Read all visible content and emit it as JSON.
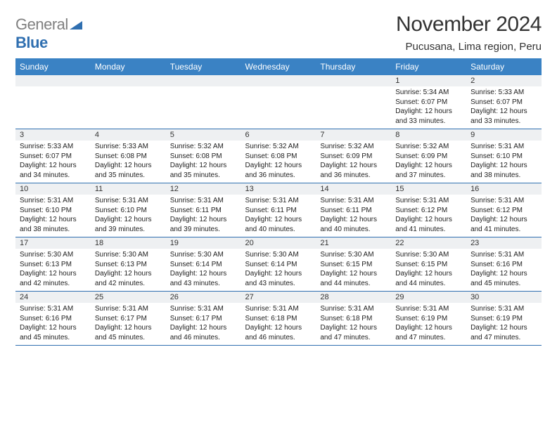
{
  "logo": {
    "text_gray": "General",
    "text_blue": "Blue"
  },
  "title": "November 2024",
  "location": "Pucusana, Lima region, Peru",
  "colors": {
    "header_bg": "#3a82c4",
    "header_text": "#ffffff",
    "rule": "#2f6fb0",
    "daynum_bg": "#eef0f2",
    "text": "#222222",
    "logo_gray": "#808080",
    "logo_blue": "#2f6fb0"
  },
  "fonts": {
    "title_pt": 30,
    "location_pt": 15,
    "weekday_pt": 12,
    "cell_pt": 10
  },
  "weekdays": [
    "Sunday",
    "Monday",
    "Tuesday",
    "Wednesday",
    "Thursday",
    "Friday",
    "Saturday"
  ],
  "weeks": [
    [
      {
        "n": "",
        "sr": "",
        "ss": "",
        "dl": ""
      },
      {
        "n": "",
        "sr": "",
        "ss": "",
        "dl": ""
      },
      {
        "n": "",
        "sr": "",
        "ss": "",
        "dl": ""
      },
      {
        "n": "",
        "sr": "",
        "ss": "",
        "dl": ""
      },
      {
        "n": "",
        "sr": "",
        "ss": "",
        "dl": ""
      },
      {
        "n": "1",
        "sr": "Sunrise: 5:34 AM",
        "ss": "Sunset: 6:07 PM",
        "dl": "Daylight: 12 hours and 33 minutes."
      },
      {
        "n": "2",
        "sr": "Sunrise: 5:33 AM",
        "ss": "Sunset: 6:07 PM",
        "dl": "Daylight: 12 hours and 33 minutes."
      }
    ],
    [
      {
        "n": "3",
        "sr": "Sunrise: 5:33 AM",
        "ss": "Sunset: 6:07 PM",
        "dl": "Daylight: 12 hours and 34 minutes."
      },
      {
        "n": "4",
        "sr": "Sunrise: 5:33 AM",
        "ss": "Sunset: 6:08 PM",
        "dl": "Daylight: 12 hours and 35 minutes."
      },
      {
        "n": "5",
        "sr": "Sunrise: 5:32 AM",
        "ss": "Sunset: 6:08 PM",
        "dl": "Daylight: 12 hours and 35 minutes."
      },
      {
        "n": "6",
        "sr": "Sunrise: 5:32 AM",
        "ss": "Sunset: 6:08 PM",
        "dl": "Daylight: 12 hours and 36 minutes."
      },
      {
        "n": "7",
        "sr": "Sunrise: 5:32 AM",
        "ss": "Sunset: 6:09 PM",
        "dl": "Daylight: 12 hours and 36 minutes."
      },
      {
        "n": "8",
        "sr": "Sunrise: 5:32 AM",
        "ss": "Sunset: 6:09 PM",
        "dl": "Daylight: 12 hours and 37 minutes."
      },
      {
        "n": "9",
        "sr": "Sunrise: 5:31 AM",
        "ss": "Sunset: 6:10 PM",
        "dl": "Daylight: 12 hours and 38 minutes."
      }
    ],
    [
      {
        "n": "10",
        "sr": "Sunrise: 5:31 AM",
        "ss": "Sunset: 6:10 PM",
        "dl": "Daylight: 12 hours and 38 minutes."
      },
      {
        "n": "11",
        "sr": "Sunrise: 5:31 AM",
        "ss": "Sunset: 6:10 PM",
        "dl": "Daylight: 12 hours and 39 minutes."
      },
      {
        "n": "12",
        "sr": "Sunrise: 5:31 AM",
        "ss": "Sunset: 6:11 PM",
        "dl": "Daylight: 12 hours and 39 minutes."
      },
      {
        "n": "13",
        "sr": "Sunrise: 5:31 AM",
        "ss": "Sunset: 6:11 PM",
        "dl": "Daylight: 12 hours and 40 minutes."
      },
      {
        "n": "14",
        "sr": "Sunrise: 5:31 AM",
        "ss": "Sunset: 6:11 PM",
        "dl": "Daylight: 12 hours and 40 minutes."
      },
      {
        "n": "15",
        "sr": "Sunrise: 5:31 AM",
        "ss": "Sunset: 6:12 PM",
        "dl": "Daylight: 12 hours and 41 minutes."
      },
      {
        "n": "16",
        "sr": "Sunrise: 5:31 AM",
        "ss": "Sunset: 6:12 PM",
        "dl": "Daylight: 12 hours and 41 minutes."
      }
    ],
    [
      {
        "n": "17",
        "sr": "Sunrise: 5:30 AM",
        "ss": "Sunset: 6:13 PM",
        "dl": "Daylight: 12 hours and 42 minutes."
      },
      {
        "n": "18",
        "sr": "Sunrise: 5:30 AM",
        "ss": "Sunset: 6:13 PM",
        "dl": "Daylight: 12 hours and 42 minutes."
      },
      {
        "n": "19",
        "sr": "Sunrise: 5:30 AM",
        "ss": "Sunset: 6:14 PM",
        "dl": "Daylight: 12 hours and 43 minutes."
      },
      {
        "n": "20",
        "sr": "Sunrise: 5:30 AM",
        "ss": "Sunset: 6:14 PM",
        "dl": "Daylight: 12 hours and 43 minutes."
      },
      {
        "n": "21",
        "sr": "Sunrise: 5:30 AM",
        "ss": "Sunset: 6:15 PM",
        "dl": "Daylight: 12 hours and 44 minutes."
      },
      {
        "n": "22",
        "sr": "Sunrise: 5:30 AM",
        "ss": "Sunset: 6:15 PM",
        "dl": "Daylight: 12 hours and 44 minutes."
      },
      {
        "n": "23",
        "sr": "Sunrise: 5:31 AM",
        "ss": "Sunset: 6:16 PM",
        "dl": "Daylight: 12 hours and 45 minutes."
      }
    ],
    [
      {
        "n": "24",
        "sr": "Sunrise: 5:31 AM",
        "ss": "Sunset: 6:16 PM",
        "dl": "Daylight: 12 hours and 45 minutes."
      },
      {
        "n": "25",
        "sr": "Sunrise: 5:31 AM",
        "ss": "Sunset: 6:17 PM",
        "dl": "Daylight: 12 hours and 45 minutes."
      },
      {
        "n": "26",
        "sr": "Sunrise: 5:31 AM",
        "ss": "Sunset: 6:17 PM",
        "dl": "Daylight: 12 hours and 46 minutes."
      },
      {
        "n": "27",
        "sr": "Sunrise: 5:31 AM",
        "ss": "Sunset: 6:18 PM",
        "dl": "Daylight: 12 hours and 46 minutes."
      },
      {
        "n": "28",
        "sr": "Sunrise: 5:31 AM",
        "ss": "Sunset: 6:18 PM",
        "dl": "Daylight: 12 hours and 47 minutes."
      },
      {
        "n": "29",
        "sr": "Sunrise: 5:31 AM",
        "ss": "Sunset: 6:19 PM",
        "dl": "Daylight: 12 hours and 47 minutes."
      },
      {
        "n": "30",
        "sr": "Sunrise: 5:31 AM",
        "ss": "Sunset: 6:19 PM",
        "dl": "Daylight: 12 hours and 47 minutes."
      }
    ]
  ]
}
